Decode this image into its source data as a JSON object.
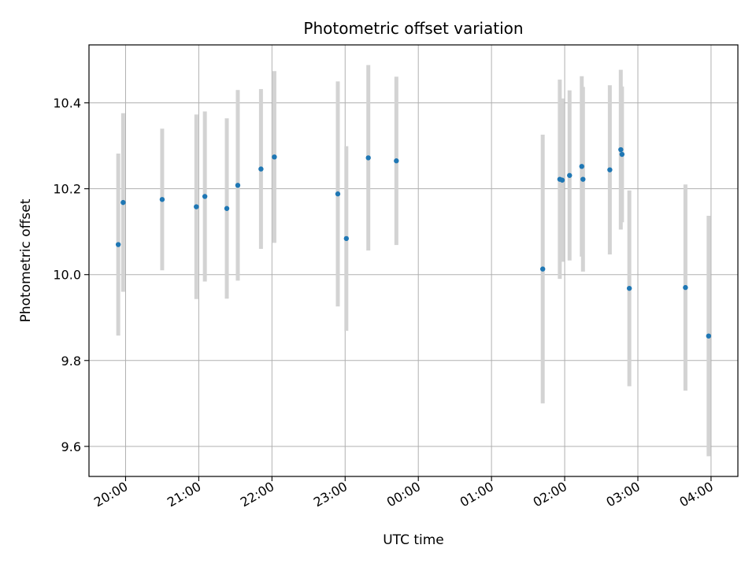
{
  "chart_data": {
    "type": "scatter",
    "title": "Photometric offset variation",
    "xlabel": "UTC time",
    "ylabel": "Photometric offset",
    "x_tick_labels": [
      "20:00",
      "21:00",
      "22:00",
      "23:00",
      "00:00",
      "01:00",
      "02:00",
      "03:00",
      "04:00"
    ],
    "y_tick_labels": [
      "9.6",
      "9.8",
      "10.0",
      "10.2",
      "10.4"
    ],
    "xlim": [
      "19:30",
      "04:22"
    ],
    "ylim": [
      9.53,
      10.535
    ],
    "grid": true,
    "point_color": "#1f77b4",
    "errorbar_color": "#d3d3d3",
    "points": [
      {
        "t": "19:54",
        "y": 10.07,
        "err": 0.212
      },
      {
        "t": "19:58",
        "y": 10.168,
        "err": 0.208
      },
      {
        "t": "20:30",
        "y": 10.175,
        "err": 0.165
      },
      {
        "t": "20:58",
        "y": 10.158,
        "err": 0.215
      },
      {
        "t": "21:05",
        "y": 10.182,
        "err": 0.198
      },
      {
        "t": "21:23",
        "y": 10.154,
        "err": 0.21
      },
      {
        "t": "21:32",
        "y": 10.208,
        "err": 0.222
      },
      {
        "t": "21:51",
        "y": 10.246,
        "err": 0.186
      },
      {
        "t": "22:02",
        "y": 10.274,
        "err": 0.2
      },
      {
        "t": "22:54",
        "y": 10.188,
        "err": 0.262
      },
      {
        "t": "23:01",
        "y": 10.084,
        "err": 0.215
      },
      {
        "t": "23:19",
        "y": 10.272,
        "err": 0.216
      },
      {
        "t": "23:42",
        "y": 10.265,
        "err": 0.196
      },
      {
        "t": "01:42",
        "y": 10.013,
        "err": 0.313
      },
      {
        "t": "01:56",
        "y": 10.222,
        "err": 0.232
      },
      {
        "t": "01:58",
        "y": 10.22,
        "err": 0.19
      },
      {
        "t": "02:04",
        "y": 10.231,
        "err": 0.198
      },
      {
        "t": "02:14",
        "y": 10.252,
        "err": 0.21
      },
      {
        "t": "02:15",
        "y": 10.222,
        "err": 0.215
      },
      {
        "t": "02:37",
        "y": 10.244,
        "err": 0.197
      },
      {
        "t": "02:46",
        "y": 10.291,
        "err": 0.186
      },
      {
        "t": "02:47",
        "y": 10.28,
        "err": 0.158
      },
      {
        "t": "02:53",
        "y": 9.968,
        "err": 0.228
      },
      {
        "t": "03:39",
        "y": 9.97,
        "err": 0.24
      },
      {
        "t": "03:58",
        "y": 9.857,
        "err": 0.28
      }
    ]
  }
}
